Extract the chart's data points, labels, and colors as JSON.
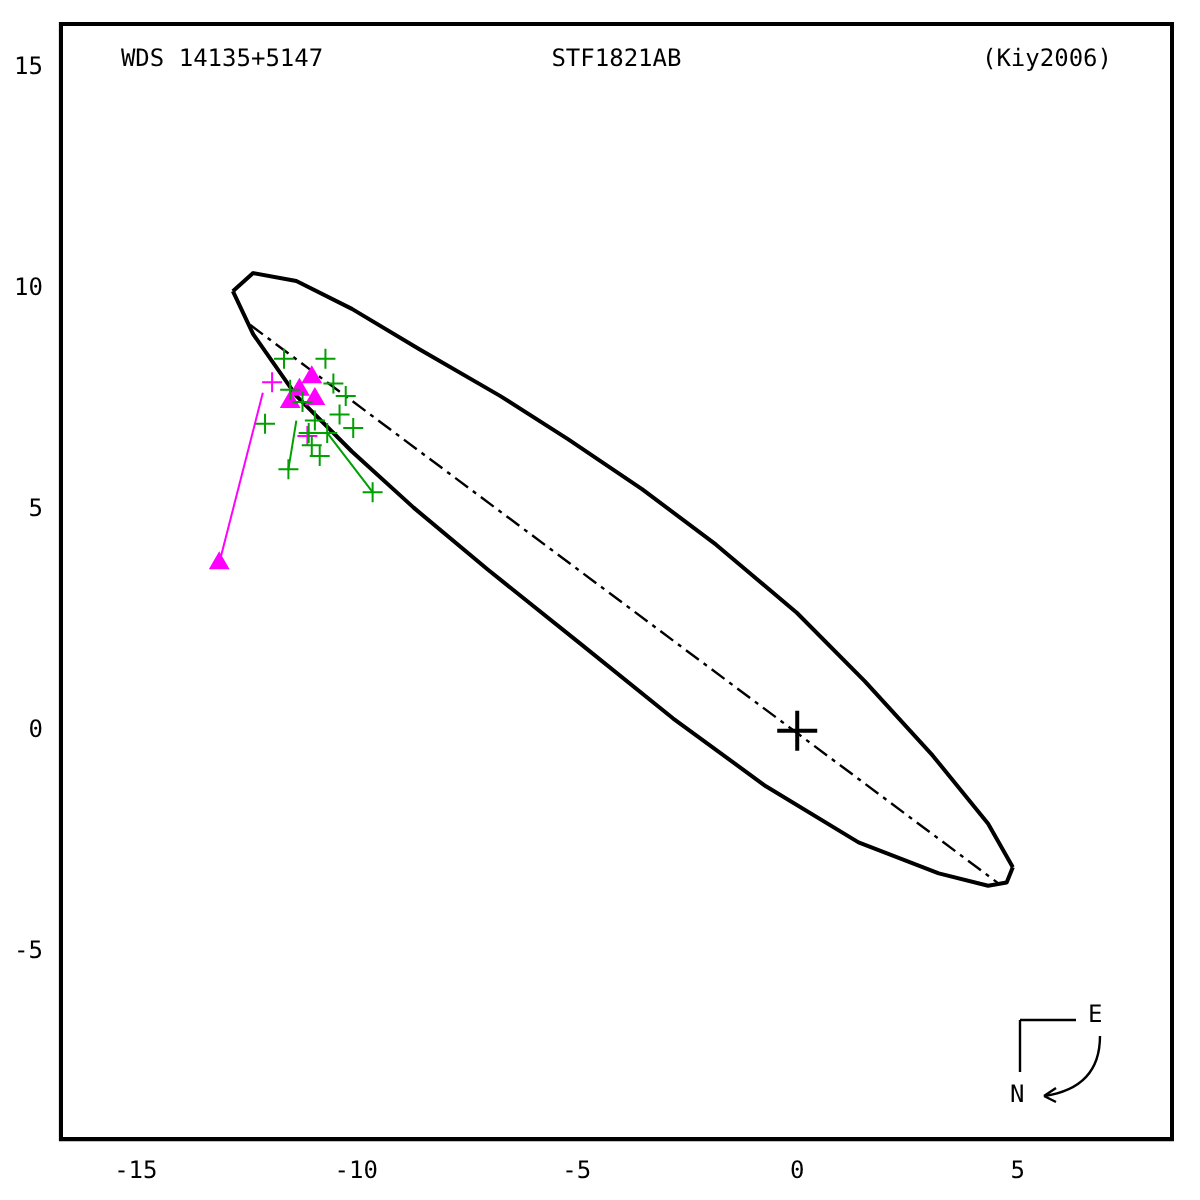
{
  "chart_data": {
    "type": "scatter",
    "title": "WDS 14135+5147",
    "subtitle": "STF1821AB",
    "annotations": [
      "(Kiy2006)",
      "E",
      "N"
    ],
    "xlim": [
      -16.7,
      8.5
    ],
    "ylim": [
      -9.25,
      16
    ],
    "xticks": [
      -15,
      -10,
      -5,
      0,
      5
    ],
    "yticks": [
      -5,
      0,
      5,
      10,
      15
    ],
    "grid": false,
    "legend": false,
    "series": [
      {
        "type": "line",
        "color": "#000000",
        "marker": "none",
        "line_style": "solid",
        "x": [
          -12.8,
          -12.34,
          -11.36,
          -10.1,
          -8.56,
          -6.74,
          -5.2,
          -3.52,
          -1.84,
          -0.01,
          1.53,
          3.07,
          4.33,
          4.89
        ],
        "values": [
          9.95,
          10.36,
          10.18,
          9.55,
          8.63,
          7.58,
          6.6,
          5.47,
          4.21,
          2.67,
          1.12,
          -0.56,
          -2.11,
          -3.09
        ]
      },
      {
        "type": "line",
        "color": "#000000",
        "marker": "none",
        "line_style": "solid",
        "x": [
          -12.8,
          -12.34,
          -11.36,
          -10.1,
          -8.7,
          -7.02,
          -4.92,
          -2.82,
          -0.71,
          1.39,
          3.21,
          4.33,
          4.75,
          4.89
        ],
        "values": [
          9.95,
          8.98,
          7.58,
          6.32,
          5.05,
          3.65,
          1.97,
          0.28,
          -1.26,
          -2.53,
          -3.23,
          -3.51,
          -3.44,
          -3.09
        ]
      },
      {
        "type": "line",
        "color": "#000000",
        "marker": "none",
        "line_style": "dashed",
        "x": [
          -12.41,
          4.54
        ],
        "values": [
          9.19,
          -3.44
        ]
      },
      {
        "type": "line",
        "color": "#00a000",
        "marker": "none",
        "line_style": "solid",
        "x": [
          -11.54,
          -11.36,
          null,
          -9.63,
          -10.66
        ],
        "values": [
          5.92,
          7.02,
          null,
          5.4,
          6.74
        ]
      },
      {
        "type": "line",
        "color": "#ff00ff",
        "marker": "none",
        "line_style": "solid",
        "x": [
          -13.11,
          -12.12
        ],
        "values": [
          3.79,
          7.65
        ]
      },
      {
        "type": "scatter",
        "color": "#00a000",
        "marker": "cross",
        "x": [
          -11.64,
          -10.7,
          -11.54,
          -9.63,
          -12.07,
          -10.83,
          -10.07,
          -10.52,
          -11.08,
          -10.38,
          -11.22,
          -10.94,
          -10.66,
          -11.5,
          -10.24,
          -11.01
        ],
        "values": [
          8.42,
          8.42,
          5.92,
          5.4,
          6.95,
          6.22,
          6.85,
          7.86,
          6.74,
          7.16,
          7.44,
          7.02,
          6.74,
          7.72,
          7.58,
          6.46
        ]
      },
      {
        "type": "scatter",
        "color": "#ff00ff",
        "marker": "triangle",
        "x": [
          -13.11,
          -11.29,
          -11.01,
          -10.94,
          -11.5
        ],
        "values": [
          3.79,
          7.72,
          8.0,
          7.51,
          7.44
        ]
      },
      {
        "type": "scatter",
        "color": "#ff00ff",
        "marker": "cross",
        "x": [
          -11.91,
          -11.11
        ],
        "values": [
          7.89,
          6.67
        ]
      },
      {
        "type": "scatter",
        "color": "#000000",
        "marker": "cross",
        "x": [
          0
        ],
        "values": [
          0
        ]
      }
    ]
  }
}
